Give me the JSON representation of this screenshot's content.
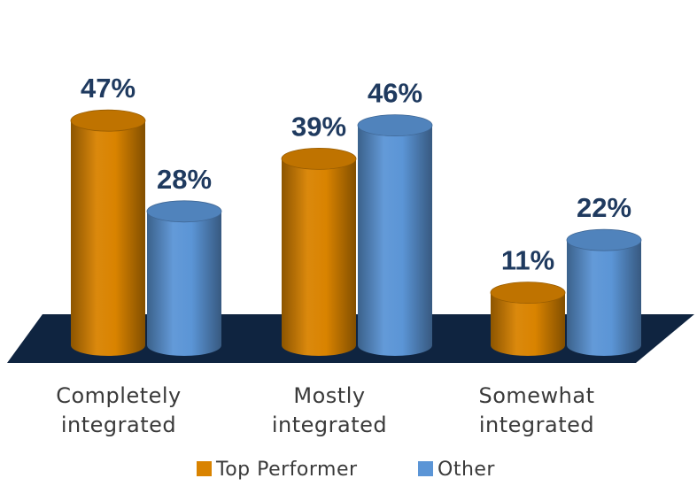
{
  "chart_data": {
    "type": "bar",
    "categories": [
      [
        "Completely",
        "integrated"
      ],
      [
        "Mostly",
        "integrated"
      ],
      [
        "Somewhat",
        "integrated"
      ]
    ],
    "series": [
      {
        "name": "Top Performer",
        "values": [
          47,
          39,
          11
        ],
        "labels": [
          "47%",
          "39%",
          "11%"
        ],
        "color": "#d98300"
      },
      {
        "name": "Other",
        "values": [
          28,
          46,
          22
        ],
        "labels": [
          "28%",
          "46%",
          "22%"
        ],
        "color": "#5b95d6"
      }
    ],
    "value_format": "percent",
    "ylim": [
      0,
      50
    ],
    "grid": false,
    "legend_position": "bottom",
    "style": "3d-cylinder",
    "floor_color": "#0f2440",
    "value_label_color": "#1f3a5f"
  }
}
